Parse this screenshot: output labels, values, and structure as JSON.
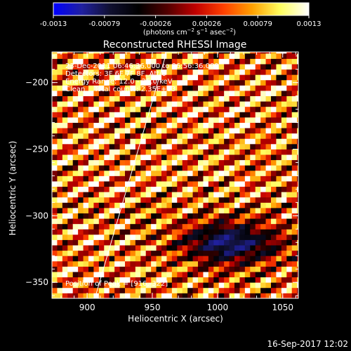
{
  "chart_data": {
    "type": "heatmap",
    "title": "Reconstructed RHESSI Image",
    "xlabel": "Heliocentric X (arcsec)",
    "ylabel": "Heliocentric Y (arcsec)",
    "xlim": [
      873,
      1062
    ],
    "ylim": [
      -362,
      -177
    ],
    "x_ticks": [
      900,
      950,
      1000,
      1050
    ],
    "y_ticks": [
      -350,
      -300,
      -250,
      -200
    ],
    "colorbar": {
      "ticks": [
        "-0.0013",
        "-0.00079",
        "-0.00026",
        "0.00026",
        "0.00079",
        "0.0013"
      ],
      "range": [
        -0.0013,
        0.0013
      ],
      "unit_html": "(photons cm<tspan dy=\"-4\" font-size=\"7\">−2</tspan><tspan dy=\"4\"> s</tspan><tspan dy=\"-4\" font-size=\"7\">−1</tspan><tspan dy=\"4\"> asec</tspan><tspan dy=\"-4\" font-size=\"7\">−2</tspan><tspan dy=\"4\">)</tspan>",
      "colors": [
        "#0000ff",
        "#2020a0",
        "#101030",
        "#000000",
        "#500000",
        "#c00000",
        "#ff4000",
        "#ffa000",
        "#ffff60",
        "#ffffff"
      ]
    },
    "annotations": [
      "23-Dec-2011 06:46:36.000 to 06:56:36.000",
      "Detectors: 3F 6F 7F 8F, Att 0",
      "Energy Range: 12.0 - 25.0 keV",
      "Clean    Total counts: 2.35E+03",
      "Position of Peak = [916,-322]"
    ],
    "limb_line": [
      [
        905,
        -365
      ],
      [
        961,
        -177
      ]
    ],
    "peak_position": [
      916,
      -322
    ],
    "pattern": {
      "pixel_size_arcsec": 4,
      "stripe_slope": 0.5,
      "stripe_period_arcsec": 14,
      "blue_region_center": [
        1010,
        -320
      ]
    }
  },
  "footer": {
    "timestamp": "16-Sep-2017 12:02"
  }
}
